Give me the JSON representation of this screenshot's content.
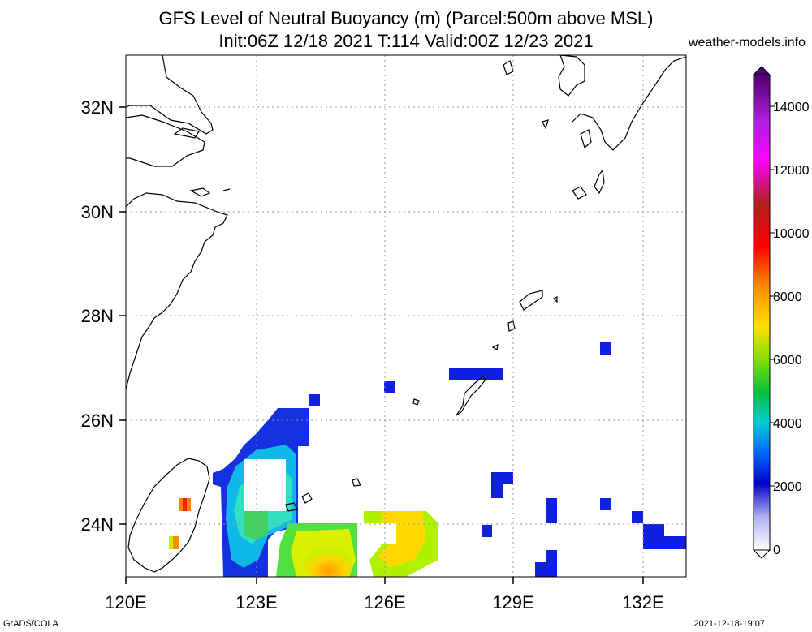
{
  "header": {
    "title_line1": "GFS Level of Neutral Buoyancy (m) (Parcel:500m above MSL)",
    "title_line2": "Init:06Z 12/18 2021 T:114 Valid:00Z 12/23 2021",
    "site": "weather-models.info"
  },
  "map": {
    "lon_range": [
      120,
      133
    ],
    "lat_range": [
      23,
      33
    ],
    "lon_ticks": [
      "120E",
      "123E",
      "126E",
      "129E",
      "132E"
    ],
    "lat_ticks": [
      "32N",
      "30N",
      "28N",
      "26N",
      "24N"
    ],
    "grid": "dotted"
  },
  "colorbar": {
    "labels": [
      "14000",
      "12000",
      "10000",
      "8000",
      "6000",
      "4000",
      "2000",
      "0"
    ],
    "colors": [
      "#6a0d83",
      "#a020f0",
      "#ff00ff",
      "#c03030",
      "#ff0000",
      "#ff8c00",
      "#ffd700",
      "#90ee00",
      "#00c000",
      "#00d0d0",
      "#0050ff",
      "#1010d0",
      "#b0b0f0"
    ]
  },
  "footer": {
    "left": "GrADS/COLA",
    "right": "2021-12-18-19:07"
  }
}
